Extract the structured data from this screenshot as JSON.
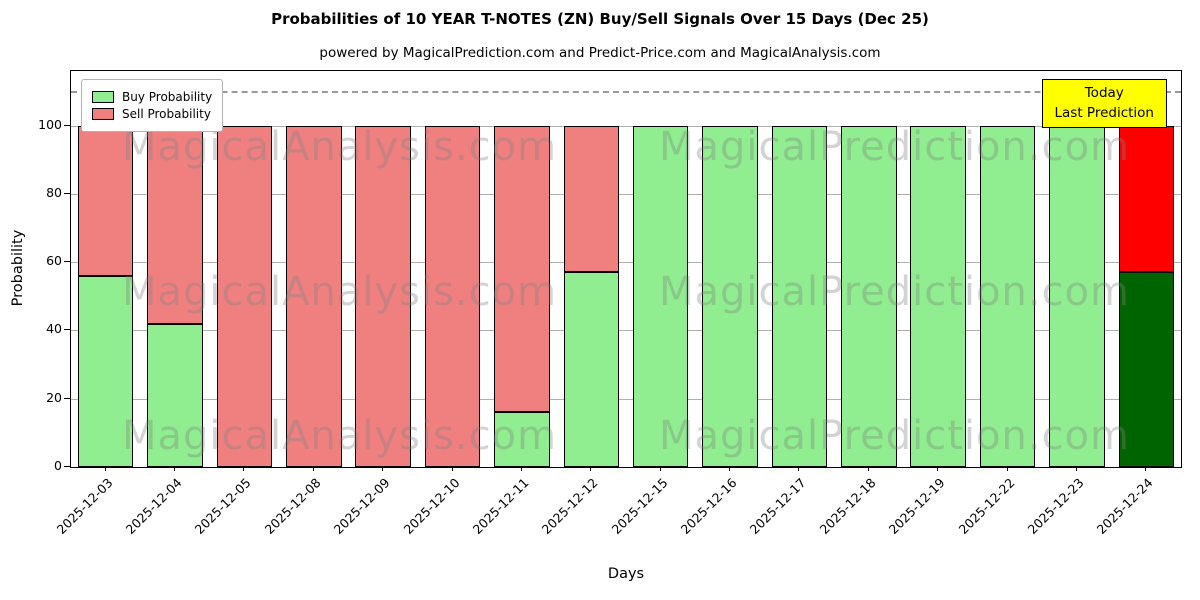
{
  "title": "Probabilities of 10 YEAR T-NOTES (ZN) Buy/Sell Signals Over 15 Days (Dec 25)",
  "subtitle": "powered by MagicalPrediction.com and Predict-Price.com and MagicalAnalysis.com",
  "chart_data": {
    "type": "bar",
    "stacked": true,
    "title": "Probabilities of 10 YEAR T-NOTES (ZN) Buy/Sell Signals Over 15 Days (Dec 25)",
    "xlabel": "Days",
    "ylabel": "Probability",
    "categories": [
      "2025-12-03",
      "2025-12-04",
      "2025-12-05",
      "2025-12-08",
      "2025-12-09",
      "2025-12-10",
      "2025-12-11",
      "2025-12-12",
      "2025-12-15",
      "2025-12-16",
      "2025-12-17",
      "2025-12-18",
      "2025-12-19",
      "2025-12-22",
      "2025-12-23",
      "2025-12-24"
    ],
    "series": [
      {
        "name": "Buy Probability",
        "color": "#90EE90",
        "today_color": "#006400",
        "values": [
          56,
          42,
          0,
          0,
          0,
          0,
          16,
          57,
          100,
          100,
          100,
          100,
          100,
          100,
          100,
          57
        ]
      },
      {
        "name": "Sell Probability",
        "color": "#F08080",
        "today_color": "#FF0000",
        "values": [
          44,
          58,
          100,
          100,
          100,
          100,
          84,
          43,
          0,
          0,
          0,
          0,
          0,
          0,
          0,
          43
        ]
      }
    ],
    "today_index": 15,
    "ylim": [
      0,
      116
    ],
    "yticks": [
      0,
      20,
      40,
      60,
      80,
      100
    ],
    "dashed_line_y": 110,
    "grid": true,
    "legend_position": "upper-left",
    "annotation": {
      "lines": [
        "Today",
        "Last Prediction"
      ],
      "bg": "#FFFF00"
    },
    "watermarks": [
      "MagicalAnalysis.com",
      "MagicalPrediction.com"
    ]
  }
}
